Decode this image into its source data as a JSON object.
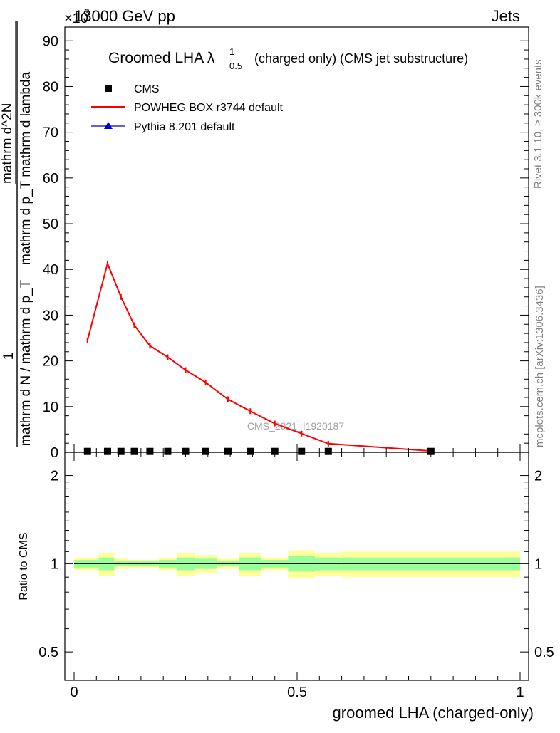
{
  "header": {
    "left": "13000 GeV pp",
    "right": "Jets",
    "multiplier": "×10"
  },
  "side_labels": {
    "rivet": "Rivet 3.1.10, ≥ 300k events",
    "mcplots": "mcplots.cern.ch [arXiv:1306.3436]"
  },
  "watermark": "CMS_2021_I1920187",
  "colors": {
    "powheg": "#ff0000",
    "pythia": "#0000cc",
    "cms": "#000000",
    "band_stat": "#99ff99",
    "band_total": "#ffff99"
  },
  "chart_data": [
    {
      "type": "line",
      "title": "Groomed LHA λ¹₀.₅ (charged only) (CMS jet substructure)",
      "title_main": "Groomed LHA λ",
      "title_sup": "1",
      "title_sub": "0.5",
      "title_rest": "(charged only) (CMS jet substructure)",
      "ylabel_numer": "1",
      "ylabel_denom": "mathrm d N / mathrm d p_T",
      "ylabel_frac_numer": "mathrm d^2N",
      "ylabel_frac_denom": "mathrm d p_T mathrm d lambda",
      "y_multiplier_exp": "3",
      "xlim": [
        0,
        1
      ],
      "ylim": [
        0,
        93
      ],
      "yticks": [
        0,
        10,
        20,
        30,
        40,
        50,
        60,
        70,
        80,
        90
      ],
      "legend_position": "top-left",
      "series": [
        {
          "name": "CMS",
          "marker": "square",
          "x": [
            0.03,
            0.075,
            0.105,
            0.135,
            0.17,
            0.21,
            0.25,
            0.295,
            0.345,
            0.395,
            0.45,
            0.51,
            0.57,
            0.8
          ],
          "values": [
            0.2,
            0.2,
            0.2,
            0.2,
            0.2,
            0.2,
            0.2,
            0.2,
            0.2,
            0.2,
            0.2,
            0.2,
            0.2,
            0.2
          ]
        },
        {
          "name": "POWHEG BOX r3744 default",
          "marker": "line",
          "x": [
            0.03,
            0.075,
            0.105,
            0.135,
            0.17,
            0.21,
            0.25,
            0.295,
            0.345,
            0.395,
            0.45,
            0.51,
            0.57,
            0.8
          ],
          "values": [
            24.5,
            41.3,
            34.0,
            27.8,
            23.3,
            20.8,
            18.0,
            15.3,
            11.6,
            9.0,
            6.3,
            4.1,
            1.9,
            0.3
          ]
        },
        {
          "name": "Pythia 8.201 default",
          "marker": "triangle",
          "x": [
            0.03,
            0.075,
            0.105,
            0.135,
            0.17,
            0.21,
            0.25,
            0.295,
            0.345,
            0.395,
            0.45,
            0.51,
            0.57,
            0.8
          ],
          "values": [
            0.1,
            0.1,
            0.1,
            0.1,
            0.1,
            0.1,
            0.1,
            0.1,
            0.1,
            0.1,
            0.1,
            0.1,
            0.1,
            0.1
          ]
        }
      ]
    },
    {
      "type": "area",
      "ylabel": "Ratio to CMS",
      "xlabel": "groomed LHA (charged-only)",
      "xlim": [
        0,
        1
      ],
      "ylim": [
        0.4,
        2.4
      ],
      "log_y": true,
      "xticks": [
        0,
        0.5,
        1
      ],
      "xtick_labels": [
        "0",
        "0.5",
        "1"
      ],
      "yticks": [
        0.5,
        1,
        2
      ],
      "ytick_labels": [
        "0.5",
        "1",
        "2"
      ],
      "ratio_reference": 1.0,
      "bins": [
        {
          "x0": 0.0,
          "x1": 0.055,
          "stat_lo": 0.97,
          "stat_hi": 1.03,
          "tot_lo": 0.95,
          "tot_hi": 1.05
        },
        {
          "x0": 0.055,
          "x1": 0.09,
          "stat_lo": 0.95,
          "stat_hi": 1.05,
          "tot_lo": 0.91,
          "tot_hi": 1.09
        },
        {
          "x0": 0.09,
          "x1": 0.12,
          "stat_lo": 0.98,
          "stat_hi": 1.02,
          "tot_lo": 0.96,
          "tot_hi": 1.04
        },
        {
          "x0": 0.12,
          "x1": 0.15,
          "stat_lo": 0.98,
          "stat_hi": 1.02,
          "tot_lo": 0.97,
          "tot_hi": 1.03
        },
        {
          "x0": 0.15,
          "x1": 0.19,
          "stat_lo": 0.98,
          "stat_hi": 1.02,
          "tot_lo": 0.97,
          "tot_hi": 1.03
        },
        {
          "x0": 0.19,
          "x1": 0.23,
          "stat_lo": 0.97,
          "stat_hi": 1.03,
          "tot_lo": 0.95,
          "tot_hi": 1.05
        },
        {
          "x0": 0.23,
          "x1": 0.27,
          "stat_lo": 0.95,
          "stat_hi": 1.05,
          "tot_lo": 0.91,
          "tot_hi": 1.09
        },
        {
          "x0": 0.27,
          "x1": 0.32,
          "stat_lo": 0.96,
          "stat_hi": 1.04,
          "tot_lo": 0.93,
          "tot_hi": 1.07
        },
        {
          "x0": 0.32,
          "x1": 0.37,
          "stat_lo": 0.98,
          "stat_hi": 1.02,
          "tot_lo": 0.96,
          "tot_hi": 1.04
        },
        {
          "x0": 0.37,
          "x1": 0.42,
          "stat_lo": 0.95,
          "stat_hi": 1.05,
          "tot_lo": 0.91,
          "tot_hi": 1.09
        },
        {
          "x0": 0.42,
          "x1": 0.48,
          "stat_lo": 0.97,
          "stat_hi": 1.03,
          "tot_lo": 0.95,
          "tot_hi": 1.05
        },
        {
          "x0": 0.48,
          "x1": 0.54,
          "stat_lo": 0.94,
          "stat_hi": 1.06,
          "tot_lo": 0.89,
          "tot_hi": 1.11
        },
        {
          "x0": 0.54,
          "x1": 0.6,
          "stat_lo": 0.95,
          "stat_hi": 1.05,
          "tot_lo": 0.91,
          "tot_hi": 1.09
        },
        {
          "x0": 0.6,
          "x1": 1.0,
          "stat_lo": 0.95,
          "stat_hi": 1.05,
          "tot_lo": 0.9,
          "tot_hi": 1.1
        }
      ]
    }
  ]
}
